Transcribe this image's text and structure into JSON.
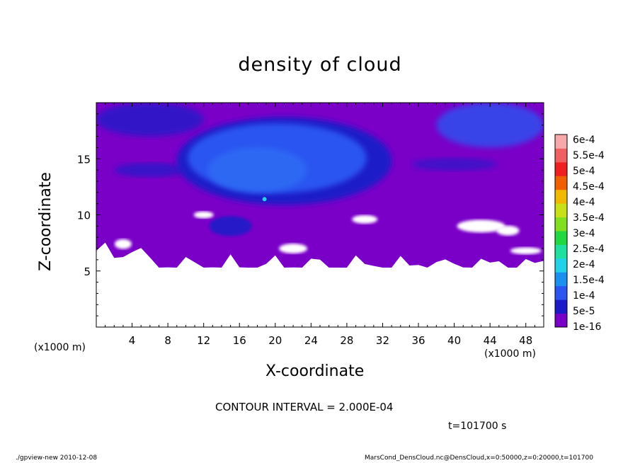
{
  "chart_data": {
    "type": "heatmap",
    "title": "density of cloud",
    "xlabel": "X-coordinate",
    "ylabel": "Z-coordinate",
    "x_unit_label": "(x1000 m)",
    "x_ticks": [
      4,
      8,
      12,
      16,
      20,
      24,
      28,
      32,
      36,
      40,
      44,
      48
    ],
    "y_ticks": [
      5,
      10,
      15
    ],
    "xlim": [
      0,
      50
    ],
    "ylim": [
      0,
      20
    ],
    "colorbar": {
      "labels": [
        "1e-16",
        "5e-5",
        "1e-4",
        "1.5e-4",
        "2e-4",
        "2.5e-4",
        "3e-4",
        "3.5e-4",
        "4e-4",
        "4.5e-4",
        "5e-4",
        "5.5e-4",
        "6e-4"
      ],
      "colors": [
        "#7a00c8",
        "#1a1ac8",
        "#2a55f0",
        "#1c90ee",
        "#22d2e8",
        "#20e0a0",
        "#22d840",
        "#80e020",
        "#c8e018",
        "#f0b800",
        "#f06000",
        "#f02020",
        "#f06060",
        "#f8a8a8"
      ]
    },
    "regions": [
      {
        "name": "cloud-layer",
        "level": "1e-16",
        "color": "#7a00c8",
        "x": [
          0,
          50
        ],
        "z": [
          5.5,
          20
        ]
      },
      {
        "name": "cloud-core",
        "level": "1e-4",
        "color": "#2a55f0",
        "x": [
          9,
          33
        ],
        "z": [
          9.5,
          18.5
        ]
      },
      {
        "name": "upper-left-band",
        "level": "5e-5",
        "color": "#1a1ac8",
        "x": [
          0,
          12
        ],
        "z": [
          17,
          20
        ]
      },
      {
        "name": "upper-right-band",
        "level": "1e-4",
        "color": "#2a55f0",
        "x": [
          38,
          50
        ],
        "z": [
          16,
          20
        ]
      }
    ],
    "peak": {
      "x": 18.8,
      "z": 11.4,
      "level": "2e-4"
    }
  },
  "contour_interval": "CONTOUR INTERVAL = 2.000E-04",
  "time_label": "t=101700 s",
  "footer": {
    "left": "./gpview-new   2010-12-08",
    "right": "MarsCond_DensCloud.nc@DensCloud,x=0:50000,z=0:20000,t=101700"
  }
}
